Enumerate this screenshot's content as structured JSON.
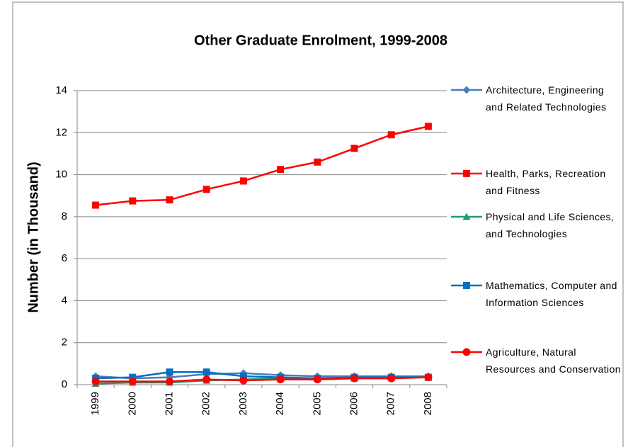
{
  "chart_data": {
    "type": "line",
    "title": "Other Graduate Enrolment, 1999-2008",
    "y_label": "Number (in Thousand)",
    "categories": [
      "1999",
      "2000",
      "2001",
      "2002",
      "2003",
      "2004",
      "2005",
      "2006",
      "2007",
      "2008"
    ],
    "series": [
      {
        "name": "Architecture, Engineering and Related Technologies",
        "color": "#4a7ebb",
        "marker": "diamond",
        "values": [
          0.4,
          0.3,
          0.35,
          0.5,
          0.55,
          0.45,
          0.4,
          0.4,
          0.4,
          0.4
        ]
      },
      {
        "name": "Health, Parks, Recreation and Fitness",
        "color": "#ff0000",
        "marker": "square",
        "values": [
          8.55,
          8.75,
          8.8,
          9.3,
          9.7,
          10.25,
          10.6,
          11.25,
          11.9,
          12.3
        ]
      },
      {
        "name": "Physical and Life Sciences, and Technologies",
        "color": "#1f9e6e",
        "marker": "triangle",
        "values": [
          0.05,
          0.1,
          0.1,
          0.2,
          0.25,
          0.3,
          0.3,
          0.3,
          0.35,
          0.35
        ]
      },
      {
        "name": "Mathematics, Computer and Information Sciences",
        "color": "#0070c0",
        "marker": "square",
        "values": [
          0.3,
          0.35,
          0.6,
          0.6,
          0.4,
          0.35,
          0.3,
          0.35,
          0.35,
          0.35
        ]
      },
      {
        "name": "Agriculture, Natural Resources and Conservation",
        "color": "#ff0000",
        "marker": "circle",
        "values": [
          0.15,
          0.15,
          0.15,
          0.25,
          0.2,
          0.25,
          0.25,
          0.3,
          0.3,
          0.35
        ]
      }
    ],
    "ylim": [
      0,
      14
    ],
    "yticks": [
      0,
      2,
      4,
      6,
      8,
      10,
      12,
      14
    ],
    "grid": true,
    "legend": "right"
  }
}
